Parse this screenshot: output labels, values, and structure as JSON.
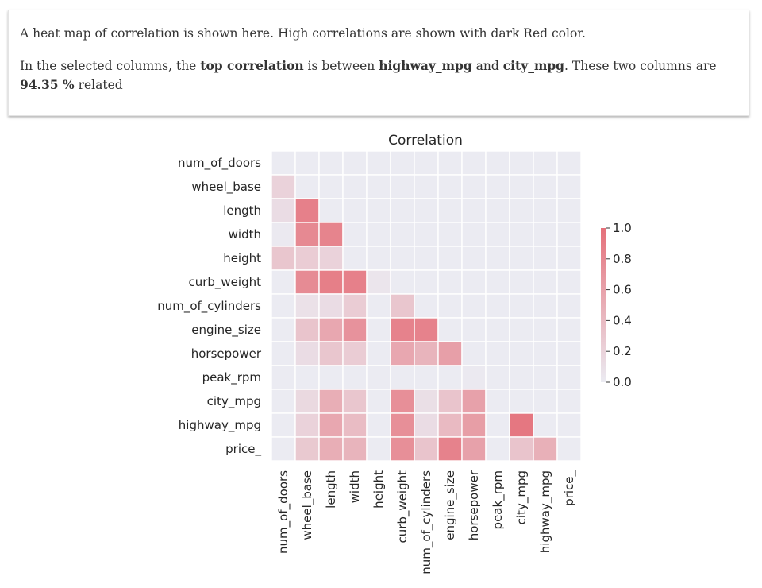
{
  "note": {
    "line1": "A heat map of correlation is shown here. High correlations are shown with dark Red color.",
    "line2": {
      "t1": "In the selected columns, the ",
      "b1": "top correlation",
      "t2": " is between ",
      "b2": "highway_mpg",
      "t3": " and ",
      "b3": "city_mpg",
      "t4": ". These two columns are ",
      "b4": "94.35 %",
      "t5": " related"
    }
  },
  "chart_data": {
    "type": "heatmap",
    "title": "Correlation",
    "labels": [
      "num_of_doors",
      "wheel_base",
      "length",
      "width",
      "height",
      "curb_weight",
      "num_of_cylinders",
      "engine_size",
      "horsepower",
      "peak_rpm",
      "city_mpg",
      "highway_mpg",
      "price_"
    ],
    "matrix": [
      [
        null,
        null,
        null,
        null,
        null,
        null,
        null,
        null,
        null,
        null,
        null,
        null,
        null
      ],
      [
        0.2,
        null,
        null,
        null,
        null,
        null,
        null,
        null,
        null,
        null,
        null,
        null,
        null
      ],
      [
        0.12,
        0.87,
        null,
        null,
        null,
        null,
        null,
        null,
        null,
        null,
        null,
        null,
        null
      ],
      [
        0.02,
        0.8,
        0.84,
        null,
        null,
        null,
        null,
        null,
        null,
        null,
        null,
        null,
        null
      ],
      [
        0.3,
        0.25,
        0.2,
        0.0,
        null,
        null,
        null,
        null,
        null,
        null,
        null,
        null,
        null
      ],
      [
        0.0,
        0.78,
        0.88,
        0.87,
        0.05,
        null,
        null,
        null,
        null,
        null,
        null,
        null,
        null
      ],
      [
        0.0,
        0.08,
        0.12,
        0.25,
        0.0,
        0.3,
        null,
        null,
        null,
        null,
        null,
        null,
        null
      ],
      [
        0.0,
        0.32,
        0.55,
        0.72,
        0.0,
        0.85,
        0.85,
        null,
        null,
        null,
        null,
        null,
        null
      ],
      [
        0.0,
        0.12,
        0.3,
        0.25,
        0.0,
        0.55,
        0.45,
        0.62,
        null,
        null,
        null,
        null,
        null
      ],
      [
        0.0,
        0.0,
        0.0,
        0.0,
        0.0,
        0.0,
        0.0,
        0.0,
        0.02,
        null,
        null,
        null,
        null
      ],
      [
        0.0,
        0.15,
        0.5,
        0.3,
        0.0,
        0.75,
        0.1,
        0.32,
        0.6,
        0.0,
        null,
        null,
        null
      ],
      [
        0.0,
        0.2,
        0.55,
        0.38,
        0.0,
        0.75,
        0.12,
        0.4,
        0.63,
        0.0,
        0.94,
        null,
        null
      ],
      [
        0.0,
        0.28,
        0.5,
        0.45,
        0.0,
        0.75,
        0.32,
        0.85,
        0.6,
        0.0,
        0.32,
        0.48,
        null
      ]
    ],
    "colorbar": {
      "min": 0.0,
      "max": 1.0,
      "ticks": [
        "0.0",
        "0.2",
        "0.4",
        "0.6",
        "0.8",
        "1.0"
      ]
    },
    "colors": {
      "low": "#ebebf2",
      "high": "#e5707a"
    },
    "grid": true,
    "legend": "colorbar-right"
  }
}
